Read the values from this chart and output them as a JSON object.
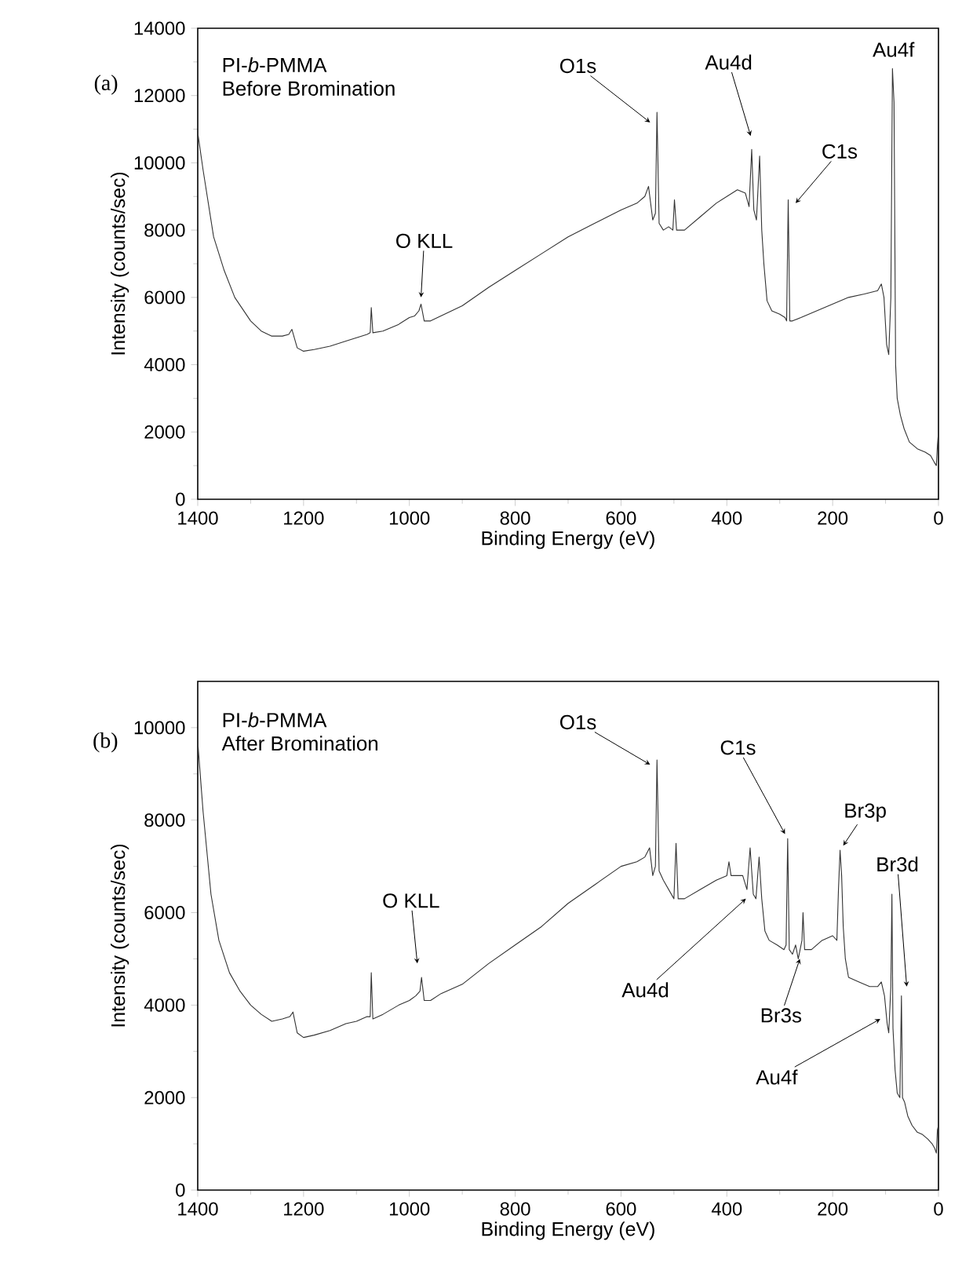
{
  "chart_data": [
    {
      "type": "line",
      "title": "PI-*b*-PMMA",
      "subtitle": "Before Bromination",
      "xlabel": "Binding Energy (eV)",
      "ylabel": "Intensity (counts/sec)",
      "color": "#333333",
      "xlim": [
        1400,
        0
      ],
      "ylim": [
        0,
        14000
      ],
      "xticks": [
        1400,
        1200,
        1000,
        800,
        600,
        400,
        200,
        0
      ],
      "yticks": [
        0,
        2000,
        4000,
        6000,
        8000,
        10000,
        12000,
        14000
      ],
      "x": [
        1400,
        1390,
        1370,
        1350,
        1330,
        1300,
        1280,
        1260,
        1240,
        1228,
        1222,
        1212,
        1200,
        1180,
        1150,
        1120,
        1100,
        1080,
        1074,
        1072,
        1069,
        1050,
        1020,
        1000,
        990,
        982,
        978,
        972,
        960,
        940,
        900,
        850,
        800,
        750,
        700,
        650,
        600,
        570,
        555,
        548,
        540,
        535,
        532,
        528,
        520,
        510,
        502,
        499,
        495,
        480,
        450,
        420,
        400,
        380,
        365,
        358,
        353,
        349,
        344,
        338,
        334,
        330,
        324,
        315,
        300,
        290,
        287,
        284,
        281,
        276,
        260,
        230,
        200,
        170,
        140,
        115,
        108,
        103,
        98,
        94,
        90,
        87,
        84,
        81,
        78,
        72,
        65,
        55,
        40,
        25,
        15,
        8,
        4,
        2,
        0
      ],
      "values": [
        10900,
        9800,
        7800,
        6800,
        6000,
        5300,
        5000,
        4850,
        4850,
        4900,
        5050,
        4500,
        4400,
        4450,
        4550,
        4700,
        4800,
        4900,
        4950,
        5700,
        4950,
        5000,
        5200,
        5400,
        5450,
        5600,
        5800,
        5300,
        5300,
        5450,
        5750,
        6300,
        6800,
        7300,
        7800,
        8200,
        8600,
        8800,
        9000,
        9300,
        8300,
        8500,
        11500,
        8200,
        8000,
        8100,
        8000,
        8900,
        8000,
        8000,
        8400,
        8800,
        9000,
        9200,
        9100,
        8700,
        10400,
        8600,
        8300,
        10200,
        8000,
        7000,
        5900,
        5600,
        5500,
        5400,
        5300,
        8900,
        5300,
        5300,
        5400,
        5600,
        5800,
        6000,
        6100,
        6200,
        6400,
        6000,
        4600,
        4300,
        6000,
        12800,
        11800,
        4000,
        3000,
        2500,
        2100,
        1700,
        1500,
        1400,
        1300,
        1100,
        1000,
        1600,
        2000
      ],
      "annotations": [
        "(a)",
        {
          "text": "O1s",
          "x": 545,
          "y": 11200
        },
        {
          "text": "Au4d",
          "x": 355,
          "y": 10800
        },
        {
          "text": "C1s",
          "x": 270,
          "y": 8800
        },
        {
          "text": "Au4f",
          "x": 85,
          "y": 12900
        },
        {
          "text": "O KLL",
          "x": 978,
          "y": 6000
        }
      ]
    },
    {
      "type": "line",
      "title": "PI-*b*-PMMA",
      "subtitle": "After Bromination",
      "xlabel": "Binding Energy (eV)",
      "ylabel": "Intensity (counts/sec)",
      "color": "#333333",
      "xlim": [
        1400,
        0
      ],
      "ylim": [
        0,
        11000
      ],
      "xticks": [
        1400,
        1200,
        1000,
        800,
        600,
        400,
        200,
        0
      ],
      "yticks": [
        0,
        2000,
        4000,
        6000,
        8000,
        10000
      ],
      "x": [
        1400,
        1390,
        1375,
        1360,
        1340,
        1320,
        1300,
        1280,
        1260,
        1240,
        1226,
        1220,
        1212,
        1200,
        1180,
        1150,
        1120,
        1100,
        1080,
        1074,
        1072,
        1069,
        1050,
        1020,
        1000,
        988,
        980,
        977,
        972,
        960,
        940,
        900,
        850,
        800,
        750,
        700,
        650,
        600,
        570,
        555,
        546,
        540,
        535,
        532,
        528,
        520,
        510,
        500,
        496,
        492,
        480,
        450,
        420,
        400,
        396,
        392,
        370,
        362,
        356,
        350,
        345,
        339,
        334,
        328,
        320,
        305,
        292,
        288,
        285,
        282,
        276,
        270,
        265,
        258,
        256,
        253,
        240,
        220,
        200,
        192,
        189,
        186,
        183,
        180,
        176,
        170,
        150,
        130,
        115,
        108,
        102,
        97,
        94,
        90,
        88,
        86,
        82,
        78,
        73,
        70,
        68,
        64,
        58,
        50,
        40,
        30,
        20,
        12,
        7,
        4,
        2,
        0
      ],
      "values": [
        9700,
        8200,
        6400,
        5400,
        4700,
        4300,
        4000,
        3800,
        3650,
        3700,
        3750,
        3850,
        3400,
        3300,
        3350,
        3450,
        3600,
        3650,
        3750,
        3750,
        4700,
        3700,
        3800,
        4000,
        4100,
        4200,
        4300,
        4600,
        4100,
        4100,
        4250,
        4450,
        4900,
        5300,
        5700,
        6200,
        6600,
        7000,
        7100,
        7200,
        7400,
        6800,
        7000,
        9300,
        6900,
        6700,
        6500,
        6300,
        7500,
        6300,
        6300,
        6500,
        6700,
        6800,
        7100,
        6800,
        6800,
        6500,
        7400,
        6400,
        6300,
        7200,
        6300,
        5600,
        5400,
        5300,
        5200,
        5300,
        7600,
        5200,
        5100,
        5300,
        5000,
        5400,
        6000,
        5200,
        5200,
        5400,
        5500,
        5400,
        6500,
        7350,
        6800,
        5700,
        5000,
        4600,
        4500,
        4400,
        4400,
        4500,
        4200,
        3600,
        3400,
        4400,
        6400,
        3500,
        2600,
        2100,
        2000,
        4200,
        2000,
        1900,
        1600,
        1400,
        1250,
        1200,
        1100,
        1000,
        900,
        800,
        1300,
        1400
      ],
      "annotations": [
        "(b)",
        {
          "text": "O1s",
          "x": 545,
          "y": 9200
        },
        {
          "text": "C1s",
          "x": 290,
          "y": 7700
        },
        {
          "text": "Br3p",
          "x": 180,
          "y": 7450
        },
        {
          "text": "Br3d",
          "x": 60,
          "y": 4400
        },
        {
          "text": "Au4d",
          "x": 364,
          "y": 6300
        },
        {
          "text": "Br3s",
          "x": 262,
          "y": 5000
        },
        {
          "text": "Au4f",
          "x": 110,
          "y": 3700
        },
        {
          "text": "O KLL",
          "x": 985,
          "y": 4900
        }
      ]
    }
  ]
}
